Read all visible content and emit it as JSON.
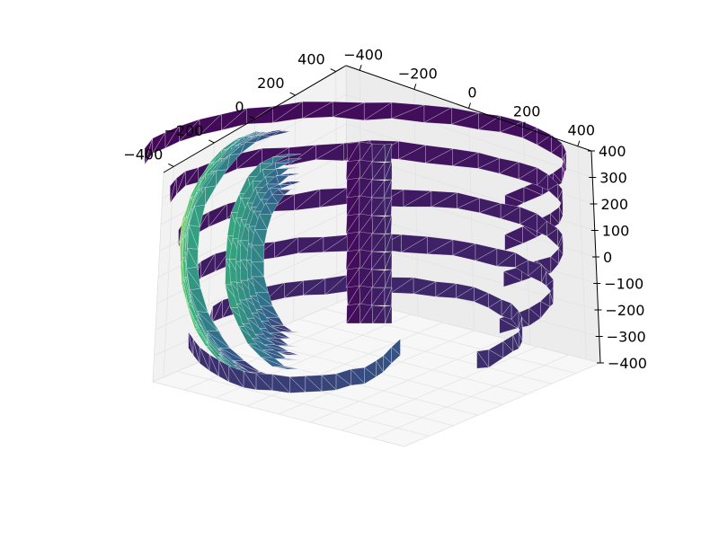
{
  "chart_data": {
    "type": "surface3d",
    "title": "",
    "x_axis": {
      "label": "",
      "ticks": [
        -400,
        -200,
        0,
        200,
        400
      ],
      "tick_labels": [
        "−400",
        "−200",
        "0",
        "200",
        "400"
      ],
      "range": [
        -450,
        450
      ]
    },
    "y_axis": {
      "label": "",
      "ticks": [
        -400,
        -200,
        0,
        200,
        400
      ],
      "tick_labels": [
        "−400",
        "−200",
        "0",
        "200",
        "400"
      ],
      "range": [
        -450,
        450
      ]
    },
    "z_axis": {
      "label": "",
      "ticks": [
        -400,
        -300,
        -200,
        -100,
        0,
        100,
        200,
        300,
        400
      ],
      "tick_labels": [
        "−400",
        "−300",
        "−200",
        "−100",
        "0",
        "100",
        "200",
        "300",
        "400"
      ],
      "range": [
        -400,
        400
      ]
    },
    "grid": true,
    "colormap": "viridis",
    "surface": "triangulated point-cloud surface of a ribbed, roughly spherical shell with a central cylindrical tube; colour encodes distance along the viewing side (yellow-green nearest on the left, dark purple at the back)",
    "colors": {
      "pane_back": "#f2f2f2",
      "pane_side": "#ececec",
      "pane_floor": "#f7f7f7",
      "grid": "#e3e3e3",
      "low": "#440154",
      "mid": "#31688e",
      "high_mid": "#35b779",
      "high": "#fde725"
    }
  }
}
